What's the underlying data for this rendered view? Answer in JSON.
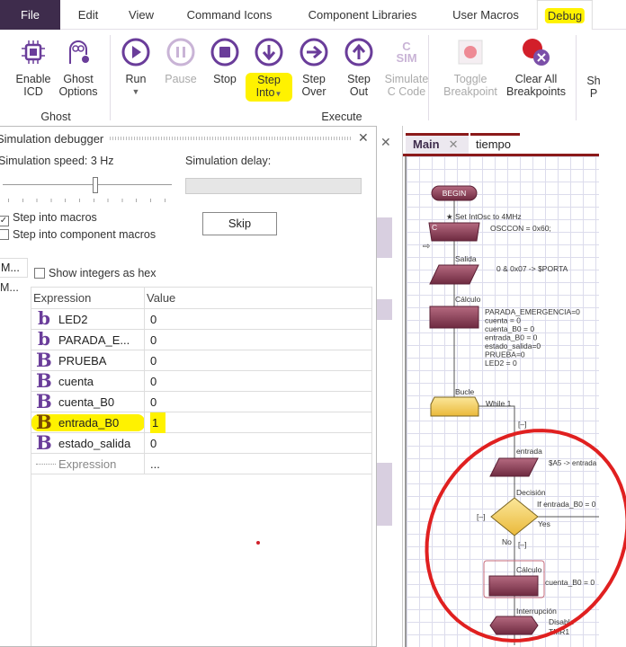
{
  "menu": {
    "file": "File",
    "edit": "Edit",
    "view": "View",
    "command_icons": "Command Icons",
    "component_libraries": "Component Libraries",
    "user_macros": "User Macros",
    "debug": "Debug"
  },
  "ribbon": {
    "enable_icd": [
      "Enable",
      "ICD"
    ],
    "ghost_options": [
      "Ghost",
      "Options"
    ],
    "run": "Run",
    "pause": "Pause",
    "stop": "Stop",
    "step_into": [
      "Step",
      "Into"
    ],
    "step_over": [
      "Step",
      "Over"
    ],
    "step_out": [
      "Step",
      "Out"
    ],
    "simulate_c": [
      "Simulate",
      "C Code"
    ],
    "sim_icon": [
      "C",
      "SIM"
    ],
    "toggle_bp": [
      "Toggle",
      "Breakpoint"
    ],
    "clear_bp": [
      "Clear All",
      "Breakpoints"
    ],
    "show": [
      "Sh",
      "P"
    ],
    "group_ghost": "Ghost",
    "group_execute": "Execute"
  },
  "debugger": {
    "title": "Simulation debugger",
    "speed_label": "Simulation speed: 3 Hz",
    "speed_fraction": 0.55,
    "delay_label": "Simulation delay:",
    "step_into_macros": "Step into macros",
    "step_into_macros_checked": true,
    "step_into_component_macros": "Step into component macros",
    "step_into_component_macros_checked": false,
    "skip": "Skip",
    "show_hex": "Show integers as hex",
    "side1": "M...",
    "side2": "M...",
    "col_expression": "Expression",
    "col_value": "Value",
    "rows": [
      {
        "type": "b",
        "name": "LED2",
        "value": "0"
      },
      {
        "type": "b",
        "name": "PARADA_E...",
        "value": "0"
      },
      {
        "type": "B",
        "name": "PRUEBA",
        "value": "0"
      },
      {
        "type": "B",
        "name": "cuenta",
        "value": "0"
      },
      {
        "type": "B",
        "name": "cuenta_B0",
        "value": "0"
      },
      {
        "type": "B",
        "name": "entrada_B0",
        "value": "1"
      },
      {
        "type": "B",
        "name": "estado_salida",
        "value": "0"
      }
    ],
    "new_expression": "Expression",
    "new_value": "..."
  },
  "flowchart": {
    "tabs": [
      "Main",
      "tiempo"
    ],
    "begin": "BEGIN",
    "osc_comment": "Set IntOsc to 4MHz",
    "c_label": "C",
    "c_code": "OSCCON = 0x60;",
    "salida": "Salida",
    "salida_text": "0 & 0x07 -> $PORTA",
    "calculo": "Cálculo",
    "calc_lines": [
      "PARADA_EMERGENCIA=0",
      "cuenta = 0",
      "cuenta_B0 = 0",
      "entrada_B0 = 0",
      "estado_salida=0",
      "PRUEBA=0",
      "LED2 = 0"
    ],
    "bucle": "Bucle",
    "while": "While 1",
    "collapse": "[–]",
    "entrada": "entrada",
    "entrada_text": "$A5 -> entrada",
    "decision": "Decisión",
    "if_text": "If  entrada_B0 = 0",
    "yes": "Yes",
    "no": "No",
    "calculo2": "Cálculo",
    "calc2_text": "cuenta_B0 = 0",
    "interrupcion": "Interrupción",
    "interrupt_text": [
      "Disable",
      "TMR1"
    ]
  },
  "colors": {
    "accent": "#6a3d9a",
    "menu_file_bg": "#3e2c4c",
    "highlight": "#fff200",
    "annotation": "#e02020",
    "block": "#8b3a55",
    "loop": "#f5d060"
  }
}
